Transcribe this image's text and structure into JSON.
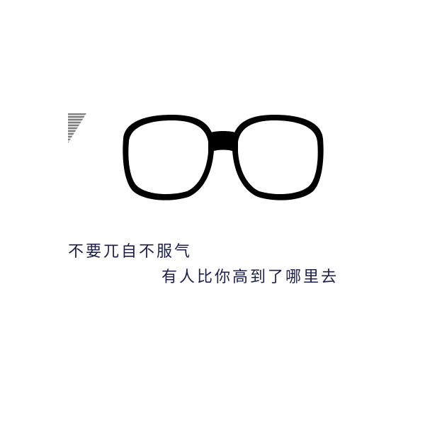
{
  "image": {
    "glasses_icon": "eyeglasses-icon",
    "colors": {
      "background": "#ffffff",
      "glasses": "#000000",
      "text": "#1b1f4a"
    }
  },
  "caption": {
    "line1": "不要兀自不服气",
    "line2": "有人比你高到了哪里去"
  }
}
